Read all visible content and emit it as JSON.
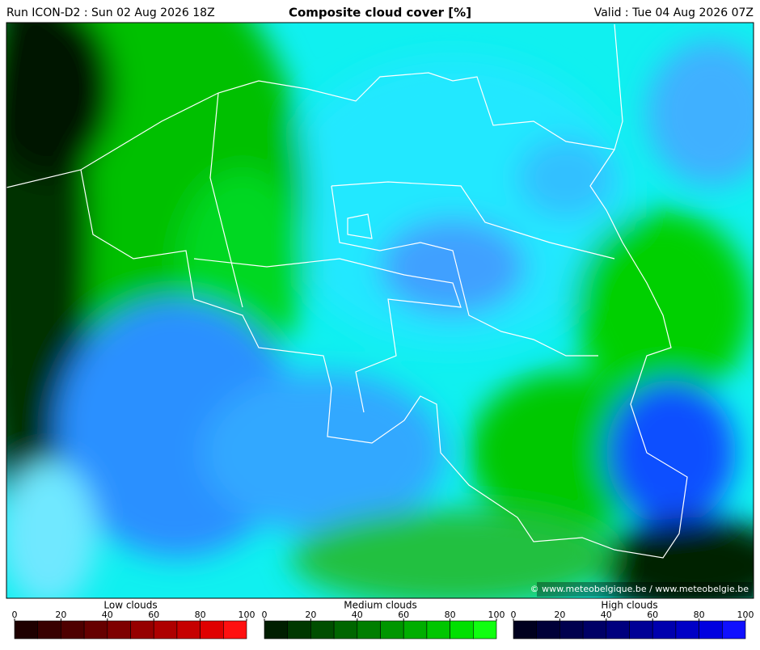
{
  "header": {
    "run": "Run ICON-D2 : Sun 02 Aug 2026 18Z",
    "title": "Composite cloud cover [%]",
    "valid": "Valid : Tue 04 Aug 2026 07Z"
  },
  "map": {
    "credit": "© www.meteobelgique.be / www.meteobelgie.be"
  },
  "legends": [
    {
      "label": "Low clouds",
      "ticks": [
        0,
        20,
        40,
        60,
        80,
        100
      ],
      "colors": [
        "#1e0000",
        "#380000",
        "#4e0000",
        "#660000",
        "#7e0000",
        "#960000",
        "#ae0000",
        "#c60000",
        "#e00000",
        "#ff1010"
      ]
    },
    {
      "label": "Medium clouds",
      "ticks": [
        0,
        20,
        40,
        60,
        80,
        100
      ],
      "colors": [
        "#001e00",
        "#003800",
        "#004e00",
        "#006600",
        "#007e00",
        "#009600",
        "#00ae00",
        "#00c600",
        "#00e000",
        "#10ff10"
      ]
    },
    {
      "label": "High clouds",
      "ticks": [
        0,
        20,
        40,
        60,
        80,
        100
      ],
      "colors": [
        "#00001e",
        "#000038",
        "#00004e",
        "#000066",
        "#00007e",
        "#000096",
        "#0000ae",
        "#0000c6",
        "#0000e0",
        "#1010ff"
      ]
    }
  ]
}
